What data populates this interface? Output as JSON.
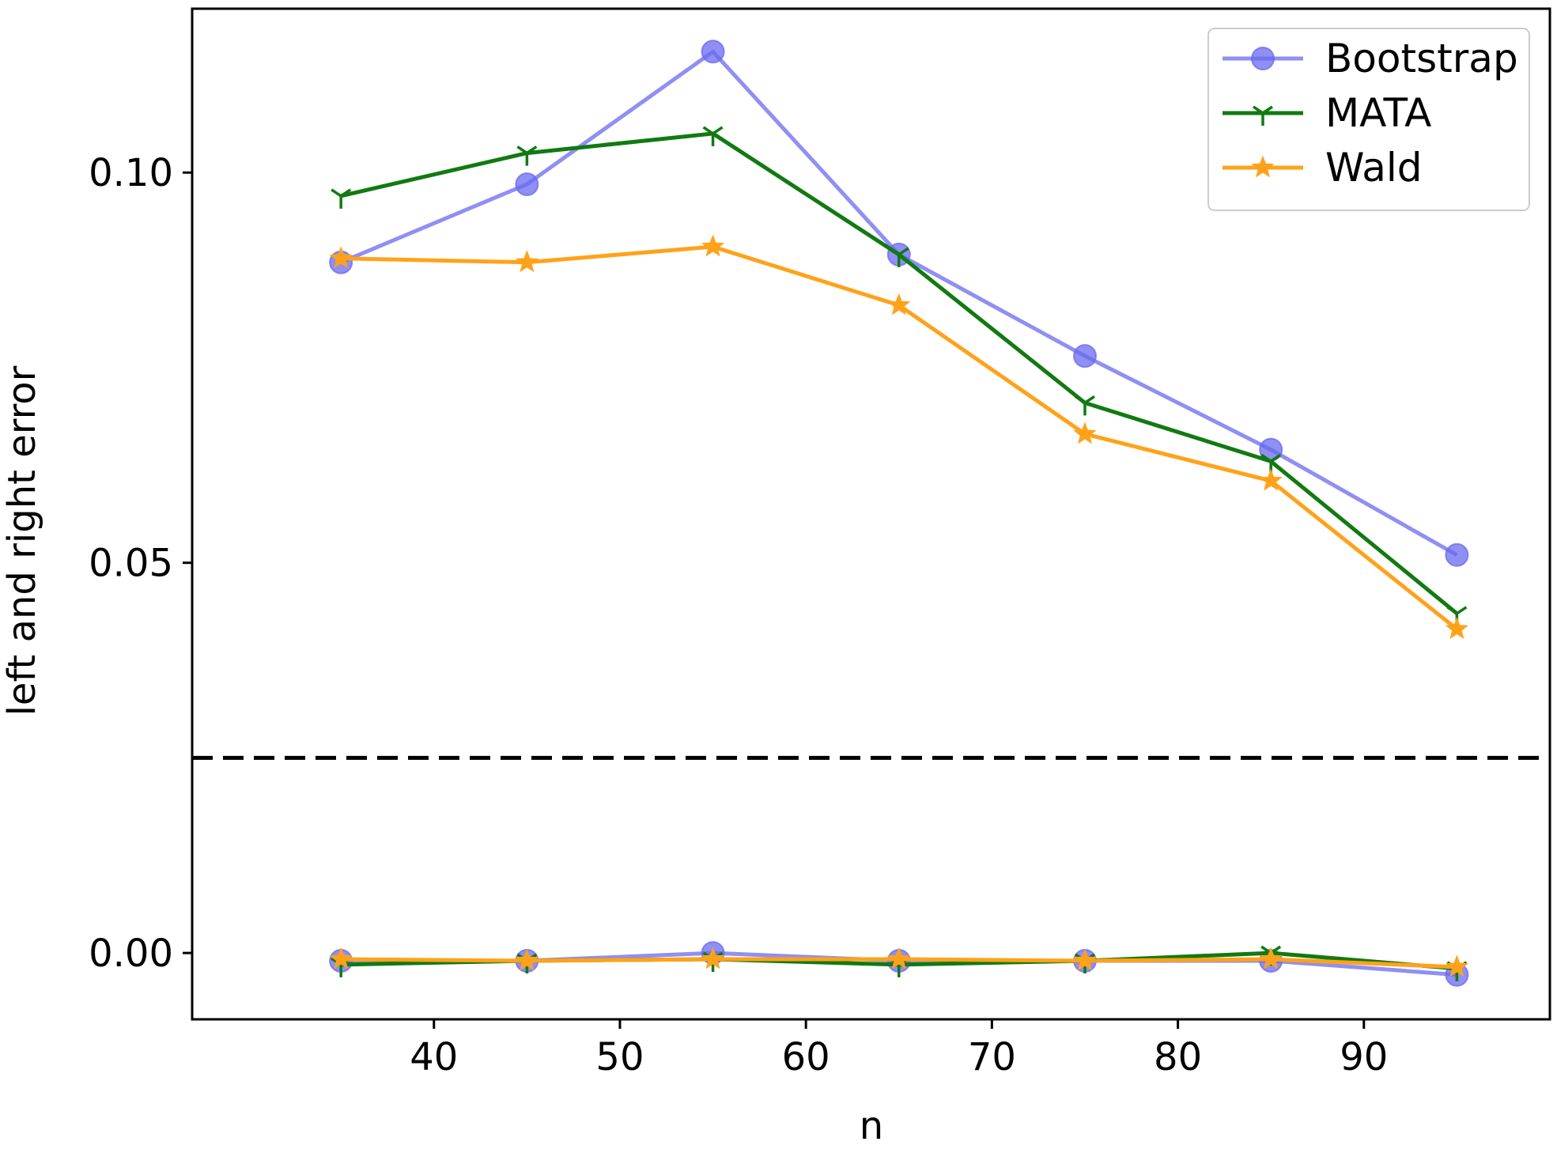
{
  "chart_data": {
    "type": "line",
    "x": [
      35,
      45,
      55,
      65,
      75,
      85,
      95
    ],
    "xlabel": "n",
    "ylabel": "left and right error",
    "xlim": [
      27,
      100
    ],
    "ylim": [
      -0.0085,
      0.121
    ],
    "xticks": [
      40,
      50,
      60,
      70,
      80,
      90
    ],
    "xtick_labels": [
      "40",
      "50",
      "60",
      "70",
      "80",
      "90"
    ],
    "yticks": [
      0.0,
      0.05,
      0.1
    ],
    "ytick_labels": [
      "0.00",
      "0.05",
      "0.10"
    ],
    "reference_line": {
      "y": 0.025,
      "style": "dashed",
      "color": "#000000"
    },
    "grid": false,
    "legend_position": "top-right",
    "series": [
      {
        "name": "Bootstrap",
        "group": "upper",
        "marker": "circle",
        "color": "#6a6af0",
        "opacity": 0.75,
        "values": [
          0.0885,
          0.0985,
          0.1155,
          0.0895,
          0.0765,
          0.0645,
          0.051
        ]
      },
      {
        "name": "MATA",
        "group": "upper",
        "marker": "tri-down",
        "color": "#117a11",
        "opacity": 1.0,
        "values": [
          0.097,
          0.1025,
          0.105,
          0.0895,
          0.0705,
          0.063,
          0.0435
        ]
      },
      {
        "name": "Wald",
        "group": "upper",
        "marker": "star",
        "color": "#ffa21a",
        "opacity": 1.0,
        "values": [
          0.089,
          0.0885,
          0.0905,
          0.083,
          0.0665,
          0.0605,
          0.0415
        ]
      },
      {
        "name": "Bootstrap",
        "group": "lower",
        "marker": "circle",
        "color": "#6a6af0",
        "opacity": 0.75,
        "values": [
          -0.001,
          -0.001,
          0.0,
          -0.001,
          -0.001,
          -0.001,
          -0.0028
        ]
      },
      {
        "name": "MATA",
        "group": "lower",
        "marker": "tri-down",
        "color": "#117a11",
        "opacity": 1.0,
        "values": [
          -0.0015,
          -0.001,
          -0.0008,
          -0.0015,
          -0.001,
          0.0,
          -0.002
        ]
      },
      {
        "name": "Wald",
        "group": "lower",
        "marker": "star",
        "color": "#ffa21a",
        "opacity": 1.0,
        "values": [
          -0.0008,
          -0.001,
          -0.0008,
          -0.0008,
          -0.001,
          -0.0008,
          -0.0018
        ]
      }
    ]
  }
}
